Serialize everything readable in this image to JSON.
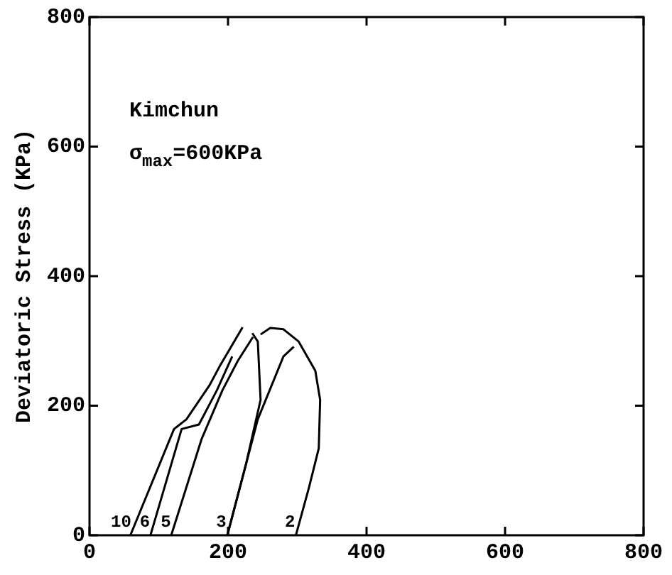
{
  "chart_data": {
    "type": "line",
    "ylabel": "Deviatoric Stress (KPa)",
    "xlim": [
      0,
      800
    ],
    "xticks": [
      0,
      200,
      400,
      600,
      800
    ],
    "ylim": [
      0,
      800
    ],
    "yticks": [
      0,
      200,
      400,
      600,
      800
    ],
    "grid": false,
    "legend": false,
    "marker": "none",
    "line_style": "solid",
    "series": [
      {
        "name": "2",
        "color": "#000000",
        "x": [
          298,
          317,
          331,
          333,
          326,
          302,
          280,
          261,
          247
        ],
        "values": [
          0,
          74,
          134,
          209,
          254,
          299,
          318,
          320,
          310
        ]
      },
      {
        "color": "#000000",
        "x": [
          199,
          226,
          247,
          243,
          235
        ],
        "values": [
          0,
          110,
          209,
          299,
          312
        ]
      },
      {
        "name": "3",
        "color": "#000000",
        "x": [
          199,
          243,
          280,
          295
        ],
        "values": [
          0,
          179,
          276,
          291
        ]
      },
      {
        "name": "5",
        "color": "#000000",
        "x": [
          118,
          162,
          192,
          214,
          236
        ],
        "values": [
          0,
          149,
          224,
          269,
          306
        ]
      },
      {
        "name": "6",
        "color": "#000000",
        "x": [
          88,
          133,
          158,
          184,
          206
        ],
        "values": [
          0,
          164,
          171,
          224,
          276
        ]
      },
      {
        "name": "10",
        "color": "#000000",
        "x": [
          59,
          122,
          140,
          173,
          188,
          221
        ],
        "values": [
          0,
          164,
          179,
          231,
          261,
          321
        ]
      }
    ],
    "annotations": [
      "Kimchun",
      "σ$_{max}$=600KPa"
    ]
  }
}
